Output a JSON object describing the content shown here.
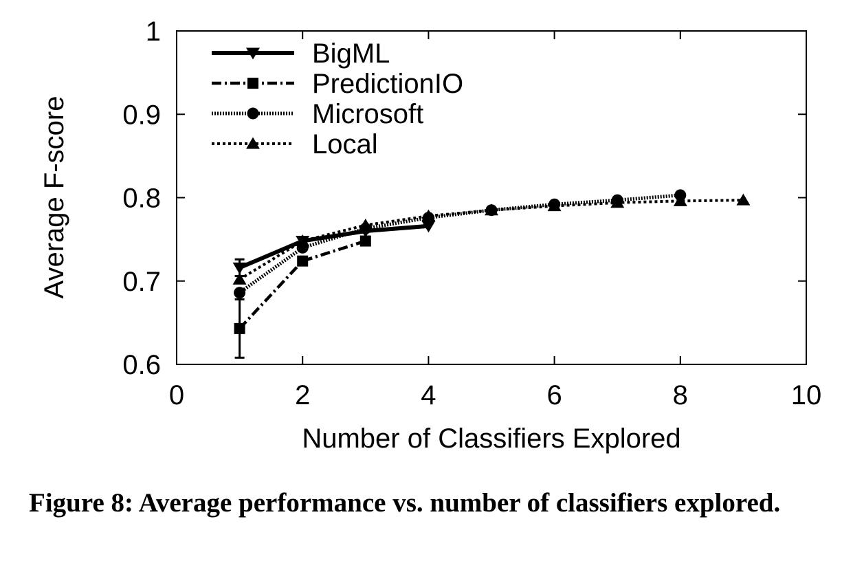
{
  "caption": "Figure 8: Average performance vs. number of classifiers explored.",
  "chart_data": {
    "type": "line",
    "title": "",
    "xlabel": "Number of Classifiers Explored",
    "ylabel": "Average F-score",
    "xlim": [
      0,
      10
    ],
    "ylim": [
      0.6,
      1
    ],
    "xticks": [
      "0",
      "2",
      "4",
      "6",
      "8",
      "10"
    ],
    "yticks": [
      "0.6",
      "0.7",
      "0.8",
      "0.9",
      "1"
    ],
    "grid": false,
    "legend_position": "top-left",
    "series": [
      {
        "name": "BigML",
        "marker": "triangle-down",
        "line_style": "solid",
        "x": [
          1,
          2,
          3,
          4
        ],
        "y": [
          0.716,
          0.748,
          0.76,
          0.766
        ],
        "error": [
          0.01,
          0,
          0,
          0
        ]
      },
      {
        "name": "PredictionIO",
        "marker": "square",
        "line_style": "dash-dot",
        "x": [
          1,
          2,
          3
        ],
        "y": [
          0.643,
          0.724,
          0.748
        ],
        "error": [
          0.035,
          0,
          0
        ]
      },
      {
        "name": "Microsoft",
        "marker": "circle",
        "line_style": "dotted-dense",
        "x": [
          1,
          2,
          3,
          4,
          5,
          6,
          7,
          8
        ],
        "y": [
          0.686,
          0.74,
          0.763,
          0.776,
          0.785,
          0.792,
          0.797,
          0.803
        ],
        "error": [
          0,
          0,
          0,
          0,
          0,
          0,
          0,
          0
        ]
      },
      {
        "name": "Local",
        "marker": "triangle-up",
        "line_style": "dotted",
        "x": [
          1,
          2,
          3,
          4,
          5,
          6,
          7,
          8,
          9
        ],
        "y": [
          0.702,
          0.748,
          0.767,
          0.778,
          0.785,
          0.79,
          0.794,
          0.796,
          0.797
        ],
        "error": [
          0,
          0,
          0,
          0,
          0,
          0,
          0,
          0,
          0
        ]
      }
    ]
  }
}
